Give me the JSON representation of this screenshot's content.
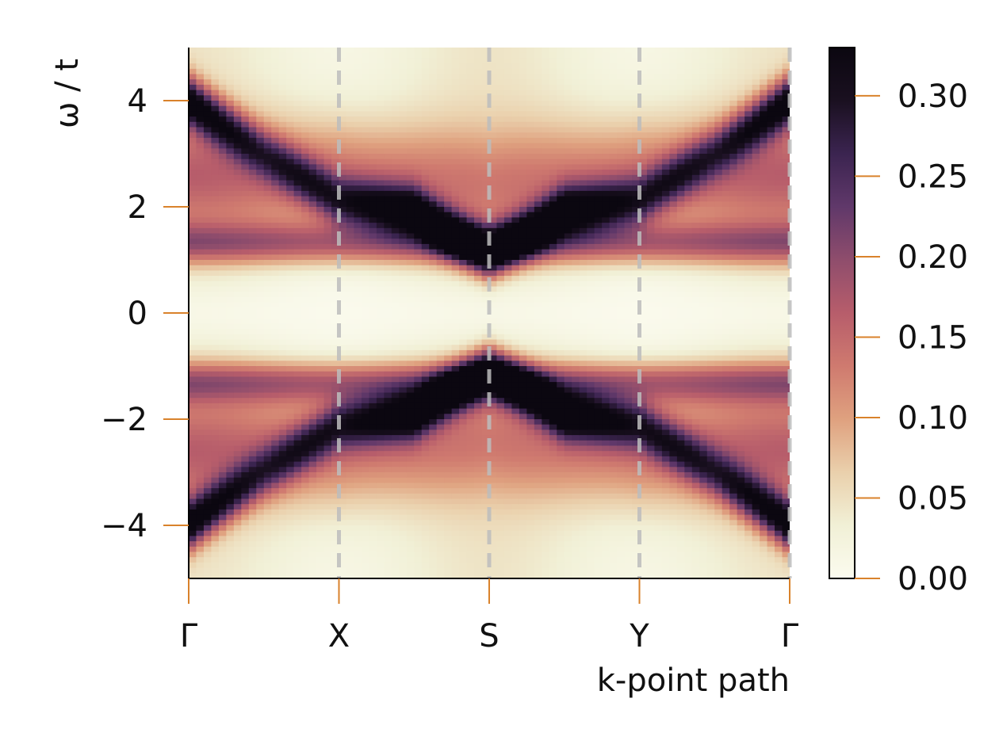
{
  "chart_data": {
    "type": "heatmap",
    "title": "",
    "xlabel": "k-point path",
    "ylabel": "ω / t",
    "x_ticks": [
      "Γ",
      "X",
      "S",
      "Y",
      "Γ"
    ],
    "y_ticks": [
      -4,
      -2,
      0,
      2,
      4
    ],
    "y_tick_labels": [
      "−4",
      "−2",
      "0",
      "2",
      "4"
    ],
    "ylim": [
      -5,
      5
    ],
    "colorbar": {
      "range": [
        0,
        0.33
      ],
      "ticks": [
        0.0,
        0.05,
        0.1,
        0.15,
        0.2,
        0.25,
        0.3
      ],
      "tick_labels": [
        "0.00",
        "0.05",
        "0.10",
        "0.15",
        "0.20",
        "0.25",
        "0.30"
      ],
      "colormap": "pink-magma (light cream to dark purple)"
    },
    "high_symmetry_lines": [
      "X",
      "S",
      "Y"
    ],
    "bands": [
      {
        "name": "upper flat band",
        "k": [
          0,
          1,
          2,
          3,
          4
        ],
        "omega": [
          1.3,
          1.3,
          1.3,
          1.3,
          1.3
        ],
        "intensity": [
          0.14,
          0.14,
          0.14,
          0.14,
          0.14
        ]
      },
      {
        "name": "lower flat band",
        "k": [
          0,
          1,
          2,
          3,
          4
        ],
        "omega": [
          -1.3,
          -1.3,
          -1.3,
          -1.3,
          -1.3
        ],
        "intensity": [
          0.14,
          0.14,
          0.14,
          0.14,
          0.14
        ]
      },
      {
        "name": "upper dispersive band",
        "k": [
          0,
          0.5,
          1,
          1.5,
          2,
          2.5,
          3,
          3.5,
          4
        ],
        "omega": [
          4.0,
          3.0,
          2.1,
          1.9,
          1.05,
          1.9,
          2.1,
          3.0,
          4.0
        ],
        "intensity": [
          0.31,
          0.16,
          0.2,
          0.31,
          0.33,
          0.31,
          0.2,
          0.16,
          0.31
        ]
      },
      {
        "name": "lower dispersive band",
        "k": [
          0,
          0.5,
          1,
          1.5,
          2,
          2.5,
          3,
          3.5,
          4
        ],
        "omega": [
          -4.0,
          -3.0,
          -2.1,
          -1.9,
          -1.05,
          -1.9,
          -2.1,
          -3.0,
          -4.0
        ],
        "intensity": [
          0.31,
          0.16,
          0.2,
          0.31,
          0.33,
          0.31,
          0.2,
          0.16,
          0.31
        ]
      },
      {
        "name": "upper broad band",
        "k": [
          0,
          1,
          2,
          3,
          4
        ],
        "omega": [
          2.6,
          2.6,
          2.4,
          2.6,
          2.6
        ],
        "intensity": [
          0.12,
          0.12,
          0.09,
          0.12,
          0.12
        ]
      },
      {
        "name": "lower broad band",
        "k": [
          0,
          1,
          2,
          3,
          4
        ],
        "omega": [
          -2.6,
          -2.6,
          -2.4,
          -2.6,
          -2.6
        ],
        "intensity": [
          0.12,
          0.12,
          0.09,
          0.12,
          0.12
        ]
      }
    ]
  },
  "colors": {
    "tick": "#d9822b",
    "axis": "#000000",
    "vline": "#bdbdbd",
    "cmap": [
      "#fbfbef",
      "#f1f0d6",
      "#ead0ac",
      "#dfa17f",
      "#cf7a6f",
      "#b75d6b",
      "#8f4d6c",
      "#60386a",
      "#3b2450",
      "#1a1020",
      "#0b0710"
    ]
  }
}
